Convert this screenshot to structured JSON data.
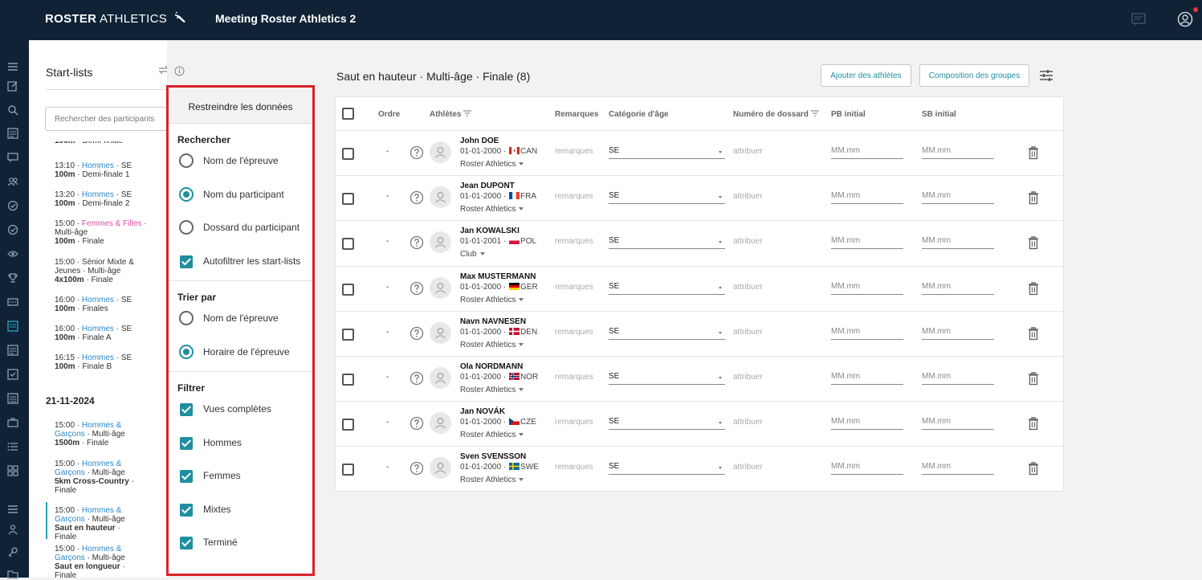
{
  "app": {
    "logo_bold": "ROSTER",
    "logo_thin": "ATHLETICS",
    "meeting_title": "Meeting Roster Athletics 2"
  },
  "startlists": {
    "title": "Start-lists",
    "search_placeholder": "Rechercher des participants",
    "items": [
      {
        "time": "13:10 · ",
        "group": "Hommes",
        "rest": " · SE",
        "event": "100m",
        "phase": " · Demi-finale 1"
      },
      {
        "time": "13:20 · ",
        "group": "Hommes",
        "rest": " · SE",
        "event": "100m",
        "phase": " · Demi-finale 2"
      },
      {
        "time": "15:00 · ",
        "group": "Femmes & Filles",
        "rest": " · Multi-âge",
        "event": "100m",
        "phase": " · Finale"
      },
      {
        "time": "15:00 · Sénior Mixte & Jeunes · Multi-âge",
        "event": "4x100m",
        "phase": " · Finale"
      },
      {
        "time": "16:00 · ",
        "group": "Hommes",
        "rest": " · SE",
        "event": "100m",
        "phase": " · Finales"
      },
      {
        "time": "16:00 · ",
        "group": "Hommes",
        "rest": " · SE",
        "event": "100m",
        "phase": " · Finale A"
      },
      {
        "time": "16:15 · ",
        "group": "Hommes",
        "rest": " · SE",
        "event": "100m",
        "phase": " · Finale B"
      }
    ],
    "date": "21-11-2024",
    "items2": [
      {
        "time": "15:00 · ",
        "group": "Hommes & Garçons",
        "rest": " · Multi-âge",
        "event": "1500m",
        "phase": " · Finale"
      },
      {
        "time": "15:00 · ",
        "group": "Hommes & Garçons",
        "rest": " · Multi-âge",
        "event": "5km Cross-Country",
        "phase": " · Finale"
      },
      {
        "time": "15:00 · ",
        "group": "Hommes & Garçons",
        "rest": " · Multi-âge",
        "event": "Saut en hauteur",
        "phase": " · Finale"
      },
      {
        "time": "15:00 · ",
        "group": "Hommes & Garçons",
        "rest": " · Multi-âge",
        "event": "Saut en longueur",
        "phase": " · Finale"
      }
    ]
  },
  "filter_panel": {
    "title": "Restreindre les données",
    "search_section": "Rechercher",
    "search_options": [
      "Nom de l'épreuve",
      "Nom du participant",
      "Dossard du participant"
    ],
    "autofilter": "Autofiltrer les start-lists",
    "sort_section": "Trier par",
    "sort_options": [
      "Nom de l'épreuve",
      "Horaire de l'épreuve"
    ],
    "filter_section": "Filtrer",
    "filter_options": [
      "Vues complètes",
      "Hommes",
      "Femmes",
      "Mixtes",
      "Terminé"
    ]
  },
  "event": {
    "title": "Saut en hauteur · Multi-âge · Finale (8)",
    "add_athletes": "Ajouter des athlètes",
    "group_composition": "Composition des groupes"
  },
  "table": {
    "headers": {
      "order": "Ordre",
      "athletes": "Athlètes",
      "remarks": "Remarques",
      "age_category": "Catégorie d'âge",
      "bib": "Numéro de dossard",
      "pb": "PB initial",
      "sb": "SB initial"
    },
    "rows": [
      {
        "order": "-",
        "name": "John DOE",
        "dob": "01-01-2000 · ",
        "flag": "CAN",
        "country": "CAN",
        "club": "Roster Athletics",
        "remarks": "remarques",
        "category": "SE",
        "bib": "attribuer",
        "pb": "MM.mm",
        "sb": "MM.mm"
      },
      {
        "order": "-",
        "name": "Jean DUPONT",
        "dob": "01-01-2000 · ",
        "flag": "FRA",
        "country": "FRA",
        "club": "Roster Athletics",
        "remarks": "remarques",
        "category": "SE",
        "bib": "attribuer",
        "pb": "MM.mm",
        "sb": "MM.mm"
      },
      {
        "order": "-",
        "name": "Jan KOWALSKI",
        "dob": "01-01-2001 · ",
        "flag": "POL",
        "country": "POL",
        "club": "Club",
        "remarks": "remarques",
        "category": "SE",
        "bib": "attribuer",
        "pb": "MM.mm",
        "sb": "MM.mm"
      },
      {
        "order": "-",
        "name": "Max MUSTERMANN",
        "dob": "01-01-2000 · ",
        "flag": "GER",
        "country": "GER",
        "club": "Roster Athletics",
        "remarks": "remarques",
        "category": "SE",
        "bib": "attribuer",
        "pb": "MM.mm",
        "sb": "MM.mm"
      },
      {
        "order": "-",
        "name": "Navn NAVNESEN",
        "dob": "01-01-2000 · ",
        "flag": "DEN",
        "country": "DEN",
        "club": "Roster Athletics",
        "remarks": "remarques",
        "category": "SE",
        "bib": "attribuer",
        "pb": "MM.mm",
        "sb": "MM.mm"
      },
      {
        "order": "-",
        "name": "Ola NORDMANN",
        "dob": "01-01-2000 · ",
        "flag": "NOR",
        "country": "NOR",
        "club": "Roster Athletics",
        "remarks": "remarques",
        "category": "SE",
        "bib": "attribuer",
        "pb": "MM.mm",
        "sb": "MM.mm"
      },
      {
        "order": "-",
        "name": "Jan NOVÁK",
        "dob": "01-01-2000 · ",
        "flag": "CZE",
        "country": "CZE",
        "club": "Roster Athletics",
        "remarks": "remarques",
        "category": "SE",
        "bib": "attribuer",
        "pb": "MM.mm",
        "sb": "MM.mm"
      },
      {
        "order": "-",
        "name": "Sven SVENSSON",
        "dob": "01-01-2000 · ",
        "flag": "SWE",
        "country": "SWE",
        "club": "Roster Athletics",
        "remarks": "remarques",
        "category": "SE",
        "bib": "attribuer",
        "pb": "MM.mm",
        "sb": "MM.mm"
      }
    ]
  },
  "colors": {
    "navbar": "#0f2236",
    "accent": "#1f8fa0",
    "highlight_border": "#d7232a",
    "link_blue": "#2b88c8",
    "link_pink": "#d94fa0"
  },
  "icons": {
    "logo": "running-shoe-icon",
    "chat": "chat-icon",
    "account": "account-icon",
    "swap": "swap-icon",
    "info": "info-icon",
    "tune": "tune-icon",
    "trash": "trash-icon",
    "help": "help-icon",
    "avatar": "person-icon"
  }
}
